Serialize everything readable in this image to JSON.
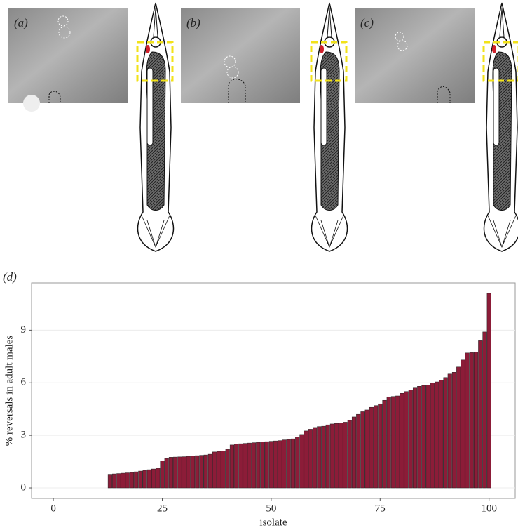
{
  "panels": {
    "a": "(a)",
    "b": "(b)",
    "c": "(c)"
  },
  "chart_data": {
    "type": "bar",
    "panel_label": "(d)",
    "x_label": "isolate",
    "y_label": "% reversals in adult males",
    "x": [
      1,
      2,
      3,
      4,
      5,
      6,
      7,
      8,
      9,
      10,
      11,
      12,
      13,
      14,
      15,
      16,
      17,
      18,
      19,
      20,
      21,
      22,
      23,
      24,
      25,
      26,
      27,
      28,
      29,
      30,
      31,
      32,
      33,
      34,
      35,
      36,
      37,
      38,
      39,
      40,
      41,
      42,
      43,
      44,
      45,
      46,
      47,
      48,
      49,
      50,
      51,
      52,
      53,
      54,
      55,
      56,
      57,
      58,
      59,
      60,
      61,
      62,
      63,
      64,
      65,
      66,
      67,
      68,
      69,
      70,
      71,
      72,
      73,
      74,
      75,
      76,
      77,
      78,
      79,
      80,
      81,
      82,
      83,
      84,
      85,
      86,
      87,
      88,
      89,
      90,
      91,
      92,
      93,
      94,
      95,
      96,
      97,
      98,
      99,
      100
    ],
    "values": [
      0,
      0,
      0,
      0,
      0,
      0,
      0,
      0,
      0,
      0,
      0,
      0,
      0.78,
      0.8,
      0.82,
      0.84,
      0.86,
      0.88,
      0.92,
      0.96,
      1.0,
      1.04,
      1.08,
      1.12,
      1.55,
      1.68,
      1.75,
      1.76,
      1.77,
      1.78,
      1.8,
      1.82,
      1.84,
      1.86,
      1.88,
      1.92,
      2.05,
      2.08,
      2.1,
      2.2,
      2.45,
      2.5,
      2.52,
      2.54,
      2.56,
      2.58,
      2.6,
      2.62,
      2.64,
      2.66,
      2.68,
      2.7,
      2.74,
      2.76,
      2.8,
      2.9,
      3.05,
      3.25,
      3.35,
      3.45,
      3.5,
      3.52,
      3.6,
      3.65,
      3.68,
      3.7,
      3.75,
      3.85,
      4.05,
      4.2,
      4.35,
      4.45,
      4.6,
      4.7,
      4.8,
      5.0,
      5.2,
      5.22,
      5.25,
      5.4,
      5.5,
      5.6,
      5.7,
      5.8,
      5.85,
      5.87,
      6.0,
      6.05,
      6.15,
      6.3,
      6.5,
      6.6,
      6.9,
      7.3,
      7.7,
      7.72,
      7.75,
      8.4,
      8.9,
      11.1
    ],
    "color": "#8c1c38",
    "xlim": [
      -5,
      106
    ],
    "xticks": [
      0,
      25,
      50,
      75,
      100
    ],
    "ylim": [
      -0.6,
      11.7
    ],
    "yticks": [
      0,
      3,
      6,
      9
    ],
    "grid": true
  }
}
